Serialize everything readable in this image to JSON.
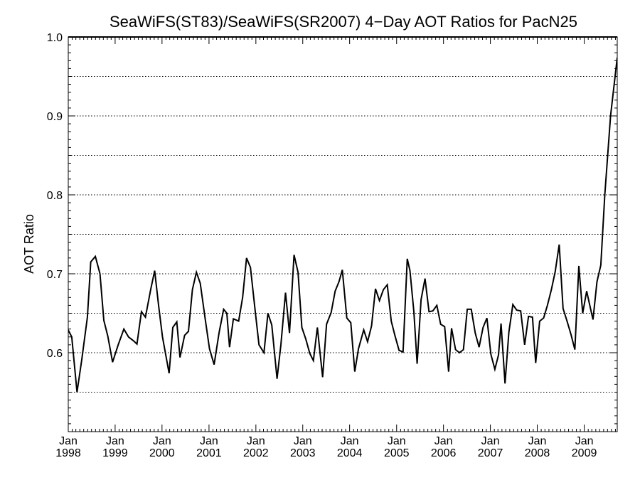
{
  "chart_data": {
    "type": "line",
    "title": "SeaWiFS(ST83)/SeaWiFS(SR2007) 4−Day AOT Ratios for PacN25",
    "xlabel": "",
    "ylabel": "AOT Ratio",
    "xlim": [
      "1998-01-01",
      "2009-09-15"
    ],
    "ylim": [
      0.5,
      1.0
    ],
    "y_ticks": [
      {
        "value": 0.6,
        "label": "0.6"
      },
      {
        "value": 0.7,
        "label": "0.7"
      },
      {
        "value": 0.8,
        "label": "0.8"
      },
      {
        "value": 0.9,
        "label": "0.9"
      },
      {
        "value": 1.0,
        "label": "1.0"
      }
    ],
    "y_dotted_grid": [
      0.55,
      0.6,
      0.65,
      0.7,
      0.75,
      0.8,
      0.85,
      0.9,
      0.95
    ],
    "reference_line": 1.0,
    "x_ticks": [
      {
        "month": "Jan",
        "year": "1998",
        "date": "1998-01-01"
      },
      {
        "month": "Jan",
        "year": "1999",
        "date": "1999-01-01"
      },
      {
        "month": "Jan",
        "year": "2000",
        "date": "2000-01-01"
      },
      {
        "month": "Jan",
        "year": "2001",
        "date": "2001-01-01"
      },
      {
        "month": "Jan",
        "year": "2002",
        "date": "2002-01-01"
      },
      {
        "month": "Jan",
        "year": "2003",
        "date": "2003-01-01"
      },
      {
        "month": "Jan",
        "year": "2004",
        "date": "2004-01-01"
      },
      {
        "month": "Jan",
        "year": "2005",
        "date": "2005-01-01"
      },
      {
        "month": "Jan",
        "year": "2006",
        "date": "2006-01-01"
      },
      {
        "month": "Jan",
        "year": "2007",
        "date": "2007-01-01"
      },
      {
        "month": "Jan",
        "year": "2008",
        "date": "2008-01-01"
      },
      {
        "month": "Jan",
        "year": "2009",
        "date": "2009-01-01"
      }
    ],
    "grid": "dotted horizontal",
    "series": [
      {
        "points": [
          [
            "1997-12-25",
            0.631
          ],
          [
            "1998-01-28",
            0.62
          ],
          [
            "1998-03-10",
            0.55
          ],
          [
            "1998-04-15",
            0.59
          ],
          [
            "1998-05-30",
            0.645
          ],
          [
            "1998-06-25",
            0.715
          ],
          [
            "1998-07-31",
            0.722
          ],
          [
            "1998-09-05",
            0.7
          ],
          [
            "1998-10-05",
            0.641
          ],
          [
            "1998-11-05",
            0.621
          ],
          [
            "1998-12-12",
            0.588
          ],
          [
            "1999-01-25",
            0.61
          ],
          [
            "1999-03-10",
            0.63
          ],
          [
            "1999-04-15",
            0.62
          ],
          [
            "1999-05-25",
            0.615
          ],
          [
            "1999-06-20",
            0.611
          ],
          [
            "1999-07-25",
            0.652
          ],
          [
            "1999-08-25",
            0.645
          ],
          [
            "1999-10-05",
            0.68
          ],
          [
            "1999-11-05",
            0.704
          ],
          [
            "1999-12-05",
            0.66
          ],
          [
            "2000-01-05",
            0.62
          ],
          [
            "2000-02-25",
            0.574
          ],
          [
            "2000-03-25",
            0.632
          ],
          [
            "2000-04-25",
            0.639
          ],
          [
            "2000-05-20",
            0.594
          ],
          [
            "2000-06-25",
            0.622
          ],
          [
            "2000-07-25",
            0.627
          ],
          [
            "2000-08-25",
            0.68
          ],
          [
            "2000-09-25",
            0.702
          ],
          [
            "2000-10-25",
            0.688
          ],
          [
            "2000-12-05",
            0.64
          ],
          [
            "2001-01-05",
            0.605
          ],
          [
            "2001-02-10",
            0.585
          ],
          [
            "2001-03-20",
            0.625
          ],
          [
            "2001-04-25",
            0.655
          ],
          [
            "2001-05-20",
            0.65
          ],
          [
            "2001-06-10",
            0.607
          ],
          [
            "2001-07-10",
            0.643
          ],
          [
            "2001-08-20",
            0.64
          ],
          [
            "2001-09-20",
            0.67
          ],
          [
            "2001-10-20",
            0.72
          ],
          [
            "2001-11-20",
            0.708
          ],
          [
            "2001-12-25",
            0.655
          ],
          [
            "2002-01-25",
            0.61
          ],
          [
            "2002-03-05",
            0.6
          ],
          [
            "2002-04-05",
            0.65
          ],
          [
            "2002-05-05",
            0.635
          ],
          [
            "2002-06-15",
            0.567
          ],
          [
            "2002-07-15",
            0.61
          ],
          [
            "2002-08-20",
            0.676
          ],
          [
            "2002-09-20",
            0.625
          ],
          [
            "2002-10-25",
            0.724
          ],
          [
            "2002-11-25",
            0.702
          ],
          [
            "2002-12-25",
            0.632
          ],
          [
            "2003-01-25",
            0.617
          ],
          [
            "2003-02-25",
            0.599
          ],
          [
            "2003-03-25",
            0.59
          ],
          [
            "2003-04-25",
            0.632
          ],
          [
            "2003-06-05",
            0.569
          ],
          [
            "2003-07-05",
            0.636
          ],
          [
            "2003-08-10",
            0.651
          ],
          [
            "2003-09-10",
            0.678
          ],
          [
            "2003-10-10",
            0.69
          ],
          [
            "2003-11-05",
            0.705
          ],
          [
            "2003-12-10",
            0.644
          ],
          [
            "2004-01-10",
            0.638
          ],
          [
            "2004-02-10",
            0.576
          ],
          [
            "2004-03-10",
            0.605
          ],
          [
            "2004-04-20",
            0.629
          ],
          [
            "2004-05-20",
            0.614
          ],
          [
            "2004-06-20",
            0.634
          ],
          [
            "2004-07-20",
            0.681
          ],
          [
            "2004-08-20",
            0.666
          ],
          [
            "2004-09-20",
            0.68
          ],
          [
            "2004-10-20",
            0.686
          ],
          [
            "2004-11-20",
            0.64
          ],
          [
            "2004-12-20",
            0.621
          ],
          [
            "2005-01-20",
            0.603
          ],
          [
            "2005-02-20",
            0.601
          ],
          [
            "2005-03-25",
            0.719
          ],
          [
            "2005-04-15",
            0.704
          ],
          [
            "2005-05-15",
            0.652
          ],
          [
            "2005-06-10",
            0.586
          ],
          [
            "2005-07-10",
            0.667
          ],
          [
            "2005-08-10",
            0.694
          ],
          [
            "2005-09-10",
            0.652
          ],
          [
            "2005-10-10",
            0.653
          ],
          [
            "2005-11-10",
            0.66
          ],
          [
            "2005-12-10",
            0.636
          ],
          [
            "2006-01-10",
            0.633
          ],
          [
            "2006-02-10",
            0.576
          ],
          [
            "2006-03-05",
            0.631
          ],
          [
            "2006-04-05",
            0.604
          ],
          [
            "2006-05-05",
            0.6
          ],
          [
            "2006-06-05",
            0.604
          ],
          [
            "2006-07-05",
            0.655
          ],
          [
            "2006-08-05",
            0.655
          ],
          [
            "2006-09-05",
            0.625
          ],
          [
            "2006-10-05",
            0.607
          ],
          [
            "2006-11-05",
            0.632
          ],
          [
            "2006-12-05",
            0.644
          ],
          [
            "2007-01-05",
            0.598
          ],
          [
            "2007-02-05",
            0.579
          ],
          [
            "2007-03-05",
            0.597
          ],
          [
            "2007-03-25",
            0.637
          ],
          [
            "2007-04-25",
            0.561
          ],
          [
            "2007-05-25",
            0.626
          ],
          [
            "2007-06-25",
            0.661
          ],
          [
            "2007-07-25",
            0.654
          ],
          [
            "2007-08-25",
            0.653
          ],
          [
            "2007-09-25",
            0.61
          ],
          [
            "2007-10-25",
            0.646
          ],
          [
            "2007-11-25",
            0.645
          ],
          [
            "2007-12-20",
            0.587
          ],
          [
            "2008-01-20",
            0.64
          ],
          [
            "2008-02-20",
            0.644
          ],
          [
            "2008-03-20",
            0.66
          ],
          [
            "2008-04-20",
            0.68
          ],
          [
            "2008-05-20",
            0.703
          ],
          [
            "2008-06-20",
            0.737
          ],
          [
            "2008-07-20",
            0.656
          ],
          [
            "2008-08-20",
            0.64
          ],
          [
            "2008-09-20",
            0.623
          ],
          [
            "2008-10-20",
            0.604
          ],
          [
            "2008-11-20",
            0.71
          ],
          [
            "2008-12-20",
            0.65
          ],
          [
            "2009-01-20",
            0.678
          ],
          [
            "2009-02-20",
            0.655
          ],
          [
            "2009-03-10",
            0.642
          ],
          [
            "2009-04-10",
            0.69
          ],
          [
            "2009-05-10",
            0.711
          ],
          [
            "2009-06-10",
            0.8
          ],
          [
            "2009-07-25",
            0.9
          ],
          [
            "2009-09-15",
            0.974
          ]
        ]
      }
    ]
  }
}
